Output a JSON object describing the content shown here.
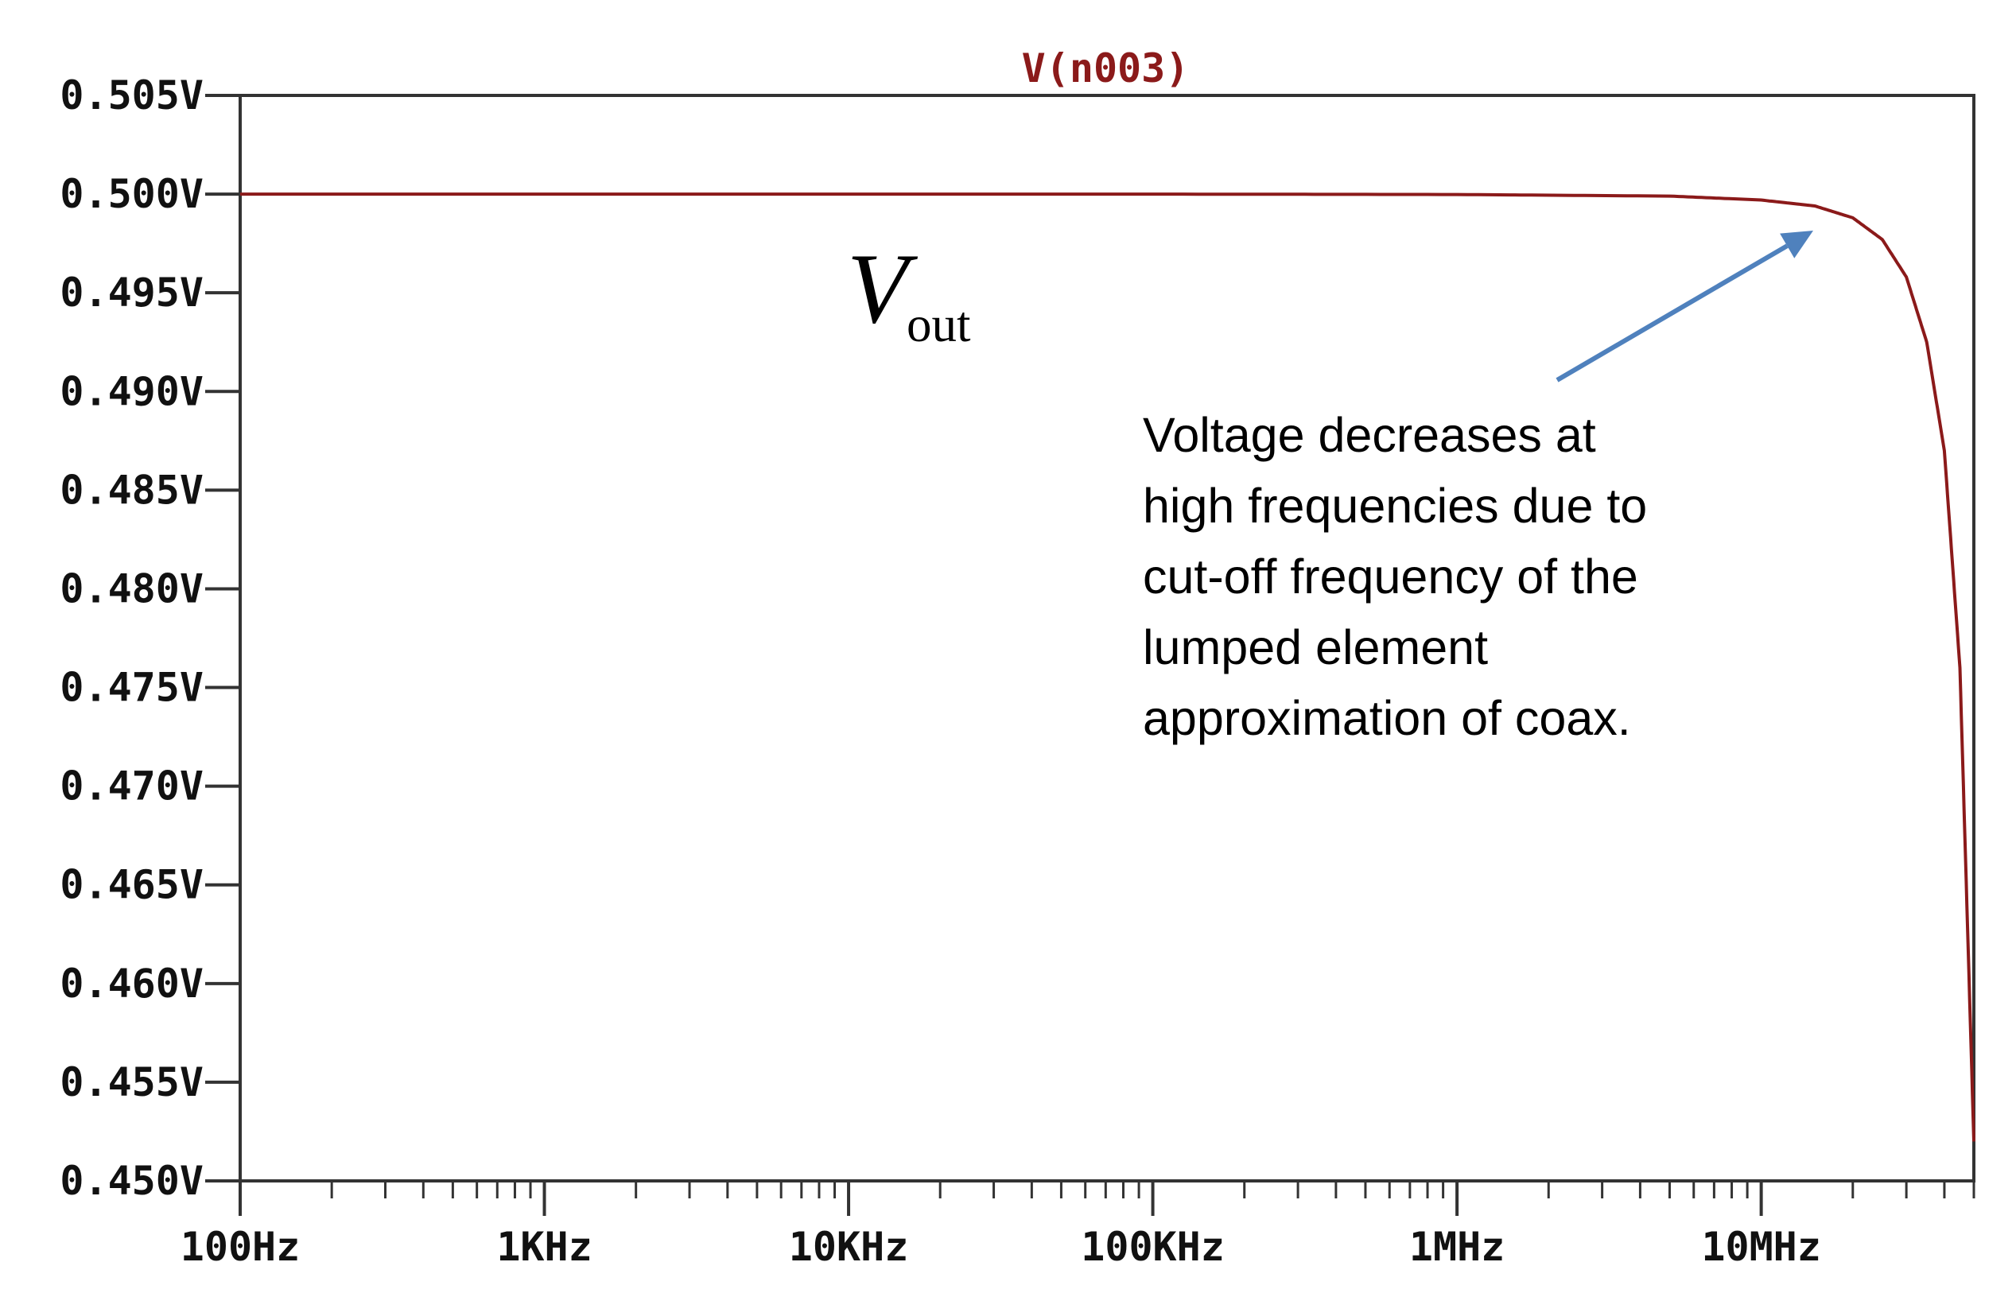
{
  "chart_data": {
    "type": "line",
    "title": "V(n003)",
    "xscale": "log",
    "xlim": [
      100,
      50000000
    ],
    "ylim": [
      0.45,
      0.505
    ],
    "x_tick_labels": [
      "100Hz",
      "1KHz",
      "10KHz",
      "100KHz",
      "1MHz",
      "10MHz"
    ],
    "x_tick_values": [
      100,
      1000,
      10000,
      100000,
      1000000,
      10000000
    ],
    "y_tick_labels": [
      "0.505V",
      "0.500V",
      "0.495V",
      "0.490V",
      "0.485V",
      "0.480V",
      "0.475V",
      "0.470V",
      "0.465V",
      "0.460V",
      "0.455V",
      "0.450V"
    ],
    "y_tick_values": [
      0.505,
      0.5,
      0.495,
      0.49,
      0.485,
      0.48,
      0.475,
      0.47,
      0.465,
      0.46,
      0.455,
      0.45
    ],
    "series": [
      {
        "name": "V(n003)",
        "color": "#8b1a1a",
        "x": [
          100,
          1000,
          10000,
          100000,
          1000000,
          5000000,
          10000000,
          15000000,
          20000000,
          25000000,
          30000000,
          35000000,
          40000000,
          45000000,
          50000000
        ],
        "y": [
          0.5,
          0.5,
          0.5,
          0.5,
          0.49998,
          0.4999,
          0.4997,
          0.4994,
          0.4988,
          0.4977,
          0.4958,
          0.4925,
          0.487,
          0.476,
          0.452
        ]
      }
    ],
    "annotations": {
      "series_label_main": "V",
      "series_label_sub": "out",
      "note_lines": [
        "Voltage decreases at",
        "high frequencies due to",
        "cut-off frequency of the",
        "lumped element",
        "approximation of coax."
      ],
      "arrow_color": "#4f81bd"
    },
    "grid": false,
    "axis_color": "#333333"
  }
}
